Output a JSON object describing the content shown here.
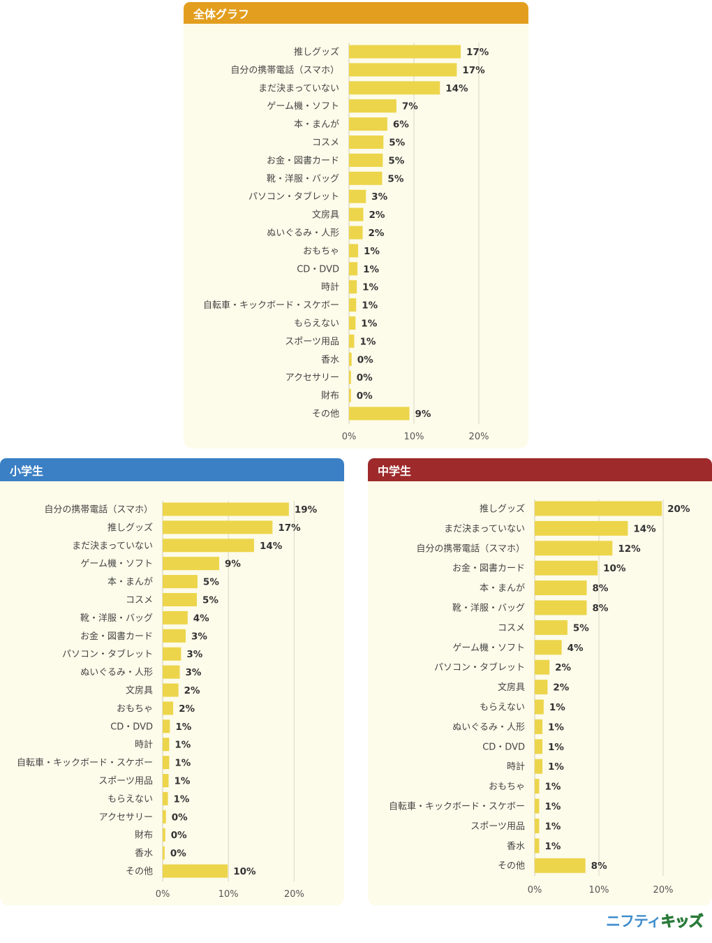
{
  "chart_data": [
    {
      "type": "bar",
      "orientation": "horizontal",
      "title": "全体グラフ",
      "header_color": "#e39e1f",
      "xlim": [
        0,
        20
      ],
      "xticks": [
        "0%",
        "10%",
        "20%"
      ],
      "categories": [
        "推しグッズ",
        "自分の携帯電話（スマホ）",
        "まだ決まっていない",
        "ゲーム機・ソフト",
        "本・まんが",
        "コスメ",
        "お金・図書カード",
        "靴・洋服・バッグ",
        "パソコン・タブレット",
        "文房具",
        "ぬいぐるみ・人形",
        "おもちゃ",
        "CD・DVD",
        "時計",
        "自転車・キックボード・スケボー",
        "もらえない",
        "スポーツ用品",
        "香水",
        "アクセサリー",
        "財布",
        "その他"
      ],
      "values": [
        17.2,
        16.6,
        14.0,
        7.3,
        5.9,
        5.3,
        5.2,
        5.1,
        2.6,
        2.2,
        2.1,
        1.4,
        1.3,
        1.2,
        1.1,
        1.0,
        0.8,
        0.4,
        0.3,
        0.3,
        9.3
      ],
      "value_labels": [
        "17%",
        "17%",
        "14%",
        "7%",
        "6%",
        "5%",
        "5%",
        "5%",
        "3%",
        "2%",
        "2%",
        "1%",
        "1%",
        "1%",
        "1%",
        "1%",
        "1%",
        "0%",
        "0%",
        "0%",
        "9%"
      ]
    },
    {
      "type": "bar",
      "orientation": "horizontal",
      "title": "小学生",
      "header_color": "#3b7fc4",
      "xlim": [
        0,
        20
      ],
      "xticks": [
        "0%",
        "10%",
        "20%"
      ],
      "categories": [
        "自分の携帯電話（スマホ）",
        "推しグッズ",
        "まだ決まっていない",
        "ゲーム機・ソフト",
        "本・まんが",
        "コスメ",
        "靴・洋服・バッグ",
        "お金・図書カード",
        "パソコン・タブレット",
        "ぬいぐるみ・人形",
        "文房具",
        "おもちゃ",
        "CD・DVD",
        "時計",
        "自転車・キックボード・スケボー",
        "スポーツ用品",
        "もらえない",
        "アクセサリー",
        "財布",
        "香水",
        "その他"
      ],
      "values": [
        19.2,
        16.7,
        13.9,
        8.6,
        5.3,
        5.2,
        3.8,
        3.5,
        2.8,
        2.6,
        2.4,
        1.6,
        1.1,
        1.0,
        1.0,
        0.9,
        0.8,
        0.5,
        0.4,
        0.3,
        9.9
      ],
      "value_labels": [
        "19%",
        "17%",
        "14%",
        "9%",
        "5%",
        "5%",
        "4%",
        "3%",
        "3%",
        "3%",
        "2%",
        "2%",
        "1%",
        "1%",
        "1%",
        "1%",
        "1%",
        "0%",
        "0%",
        "0%",
        "10%"
      ]
    },
    {
      "type": "bar",
      "orientation": "horizontal",
      "title": "中学生",
      "header_color": "#9e2a2b",
      "xlim": [
        0,
        20
      ],
      "xticks": [
        "0%",
        "10%",
        "20%"
      ],
      "categories": [
        "推しグッズ",
        "まだ決まっていない",
        "自分の携帯電話（スマホ）",
        "お金・図書カード",
        "本・まんが",
        "靴・洋服・バッグ",
        "コスメ",
        "ゲーム機・ソフト",
        "パソコン・タブレット",
        "文房具",
        "もらえない",
        "ぬいぐるみ・人形",
        "CD・DVD",
        "時計",
        "おもちゃ",
        "自転車・キックボード・スケボー",
        "スポーツ用品",
        "香水",
        "その他"
      ],
      "values": [
        19.8,
        14.5,
        12.1,
        9.8,
        8.1,
        8.1,
        5.1,
        4.2,
        2.3,
        2.0,
        1.4,
        1.2,
        1.2,
        1.2,
        0.7,
        0.7,
        0.7,
        0.7,
        7.9
      ],
      "value_labels": [
        "20%",
        "14%",
        "12%",
        "10%",
        "8%",
        "8%",
        "5%",
        "4%",
        "2%",
        "2%",
        "1%",
        "1%",
        "1%",
        "1%",
        "1%",
        "1%",
        "1%",
        "1%",
        "8%"
      ]
    }
  ],
  "logo": {
    "part1": "ニフティ",
    "part2": "キッズ"
  }
}
